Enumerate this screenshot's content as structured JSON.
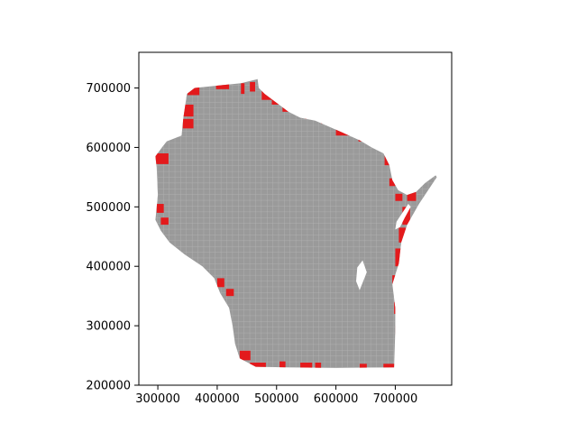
{
  "chart_data": {
    "type": "map",
    "title": "",
    "xlabel": "",
    "ylabel": "",
    "xlim": [
      268000,
      795000
    ],
    "ylim": [
      200000,
      760000
    ],
    "grid": false,
    "x_ticks": [
      {
        "value": 300000,
        "label": "300000"
      },
      {
        "value": 400000,
        "label": "400000"
      },
      {
        "value": 500000,
        "label": "500000"
      },
      {
        "value": 600000,
        "label": "600000"
      },
      {
        "value": 700000,
        "label": "700000"
      }
    ],
    "y_ticks": [
      {
        "value": 200000,
        "label": "200000"
      },
      {
        "value": 300000,
        "label": "300000"
      },
      {
        "value": 400000,
        "label": "400000"
      },
      {
        "value": 500000,
        "label": "500000"
      },
      {
        "value": 600000,
        "label": "600000"
      },
      {
        "value": 700000,
        "label": "700000"
      }
    ],
    "colors": {
      "base": "#9a9a9a",
      "highlight": "#e31a1c",
      "edge": "#b8b8b8"
    },
    "layers": [
      {
        "name": "base",
        "color": "#9a9a9a"
      },
      {
        "name": "highlight",
        "color": "#e31a1c"
      }
    ]
  }
}
